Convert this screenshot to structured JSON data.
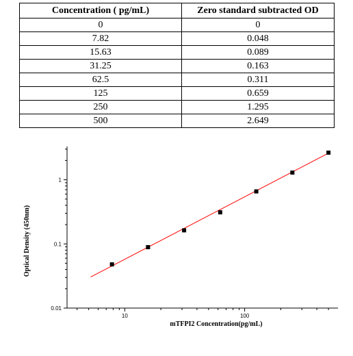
{
  "table": {
    "headers": [
      "Concentration ( pg/mL)",
      "Zero standard subtracted OD"
    ],
    "rows": [
      [
        "0",
        "0"
      ],
      [
        "7.82",
        "0.048"
      ],
      [
        "15.63",
        "0.089"
      ],
      [
        "31.25",
        "0.163"
      ],
      [
        "62.5",
        "0.311"
      ],
      [
        "125",
        "0.659"
      ],
      [
        "250",
        "1.295"
      ],
      [
        "500",
        "2.649"
      ]
    ]
  },
  "chart_data": {
    "type": "scatter",
    "xlabel": "mTFPI2  Concentration(pg/mL)",
    "ylabel": "Optical Density (450nm)",
    "x_scale": "log",
    "y_scale": "log",
    "xlim": [
      3.3,
      600
    ],
    "ylim": [
      0.01,
      3.3
    ],
    "x_tick_labels": [
      "10",
      "100"
    ],
    "y_tick_labels": [
      "0.01",
      "0.1",
      "1"
    ],
    "x_ticks": [
      10,
      100
    ],
    "y_ticks": [
      0.01,
      0.1,
      1
    ],
    "grid": false,
    "series": [
      {
        "x": [
          7.82,
          15.63,
          31.25,
          62.5,
          125,
          250,
          500
        ],
        "y": [
          0.048,
          0.089,
          0.163,
          0.311,
          0.659,
          1.295,
          2.649
        ],
        "marker": "square",
        "color": "#000000"
      }
    ],
    "fit_line": {
      "x": [
        5.2,
        500
      ],
      "y": [
        0.0305,
        2.6
      ],
      "color": "#ff0000"
    }
  }
}
